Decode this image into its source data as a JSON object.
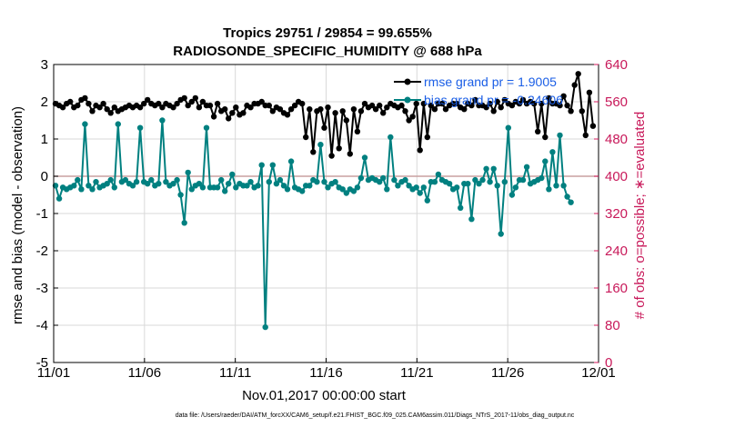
{
  "chart_data": {
    "type": "line",
    "title_line1": "Tropics 29751 / 29854 = 99.655%",
    "title_line2": "RADIOSONDE_SPECIFIC_HUMIDITY @ 688 hPa",
    "ylabel_left": "rmse and bias (model - observation)",
    "ylabel_right": "# of obs: o=possible; ∗=evaluated",
    "xlabel": "Nov.01,2017 00:00:00 start",
    "footnote": "data file: /Users/raeder/DAI/ATM_forcXX/CAM6_setup/f.e21.FHIST_BGC.f09_025.CAM6assim.011/Diags_NTrS_2017-11/obs_diag_output.nc",
    "ylim_left": [
      -5,
      3
    ],
    "yticks_left": [
      "3",
      "2",
      "1",
      "0",
      "-1",
      "-2",
      "-3",
      "-4",
      "-5"
    ],
    "ylim_right": [
      0,
      640
    ],
    "yticks_right": [
      "640",
      "560",
      "480",
      "400",
      "320",
      "240",
      "160",
      "80",
      "0"
    ],
    "xlim": [
      0,
      30
    ],
    "xticks": [
      {
        "value": 0,
        "label": "11/01"
      },
      {
        "value": 5,
        "label": "11/06"
      },
      {
        "value": 10,
        "label": "11/11"
      },
      {
        "value": 15,
        "label": "11/16"
      },
      {
        "value": 20,
        "label": "11/21"
      },
      {
        "value": 25,
        "label": "11/26"
      },
      {
        "value": 30,
        "label": "12/01"
      }
    ],
    "legend": [
      {
        "name": "rmse grand pr = 1.9005",
        "color": "#000000"
      },
      {
        "name": "bias grand pr = -0.24606",
        "color": "#008080"
      }
    ],
    "colors": {
      "rmse": "#000000",
      "bias": "#008080",
      "obs": "#d6195e",
      "zero_line": "#c8a0a0",
      "grid": "#d9d9d9"
    },
    "rmse": [
      1.95,
      1.9,
      1.85,
      1.95,
      2.0,
      1.85,
      1.9,
      2.05,
      2.1,
      1.95,
      1.75,
      1.9,
      1.85,
      1.95,
      1.8,
      1.7,
      1.85,
      1.75,
      1.8,
      1.85,
      1.9,
      1.85,
      1.9,
      1.85,
      1.95,
      2.05,
      1.95,
      1.9,
      1.95,
      1.85,
      1.95,
      1.9,
      1.85,
      1.95,
      2.05,
      2.1,
      1.9,
      2.0,
      2.1,
      1.85,
      2.0,
      1.9,
      1.9,
      1.6,
      1.95,
      1.75,
      1.8,
      1.55,
      1.7,
      1.85,
      1.65,
      1.7,
      1.9,
      1.85,
      1.95,
      1.95,
      2.0,
      1.9,
      1.9,
      1.75,
      1.85,
      1.8,
      1.7,
      1.65,
      1.8,
      1.9,
      2.0,
      1.95,
      1.05,
      1.8,
      0.65,
      1.75,
      1.8,
      1.3,
      1.85,
      0.55,
      1.7,
      0.75,
      1.75,
      1.5,
      0.6,
      1.8,
      1.2,
      1.75,
      1.95,
      1.85,
      1.9,
      1.8,
      1.9,
      1.7,
      1.85,
      1.95,
      1.9,
      1.85,
      1.9,
      1.75,
      1.5,
      1.6,
      1.95,
      0.7,
      1.95,
      1.05,
      1.9,
      1.8,
      1.95,
      1.95,
      1.8,
      1.9,
      1.95,
      1.95,
      1.85,
      1.8,
      1.95,
      1.9,
      2.05,
      1.9,
      1.9,
      1.85,
      1.95,
      1.75,
      2.0,
      1.85,
      2.05,
      1.95,
      1.9,
      2.0,
      1.95,
      2.05,
      1.95,
      2.0,
      1.95,
      1.2,
      1.95,
      1.05,
      2.1,
      1.95,
      1.95,
      1.9,
      2.15,
      1.9,
      1.75,
      2.45,
      2.75,
      1.75,
      1.1,
      2.25,
      1.35
    ],
    "bias": [
      -0.25,
      -0.6,
      -0.3,
      -0.35,
      -0.3,
      -0.25,
      -0.1,
      -0.35,
      1.4,
      -0.25,
      -0.35,
      -0.15,
      -0.3,
      -0.25,
      -0.2,
      -0.1,
      -0.3,
      1.4,
      -0.15,
      -0.1,
      -0.2,
      -0.25,
      -0.15,
      1.3,
      -0.15,
      -0.2,
      -0.1,
      -0.25,
      -0.2,
      1.5,
      -0.15,
      -0.25,
      -0.2,
      -0.1,
      -0.5,
      -1.25,
      0.1,
      -0.35,
      -0.25,
      -0.2,
      -0.3,
      1.3,
      -0.3,
      -0.3,
      -0.3,
      -0.1,
      -0.4,
      -0.2,
      0.05,
      -0.3,
      -0.2,
      -0.25,
      -0.25,
      -0.15,
      -0.3,
      -0.25,
      0.3,
      -4.05,
      -0.15,
      0.3,
      -0.2,
      -0.1,
      -0.25,
      -0.35,
      0.4,
      -0.3,
      -0.35,
      -0.4,
      -0.25,
      -0.25,
      -0.1,
      -0.15,
      0.85,
      -0.15,
      -0.3,
      -0.2,
      -0.15,
      -0.3,
      -0.35,
      -0.45,
      -0.35,
      -0.4,
      -0.3,
      -0.05,
      0.5,
      -0.1,
      -0.05,
      -0.1,
      -0.15,
      -0.05,
      -0.35,
      1.05,
      -0.1,
      -0.25,
      -0.15,
      -0.1,
      -0.25,
      -0.35,
      -0.3,
      -0.45,
      -0.3,
      -0.65,
      -0.15,
      -0.15,
      0.05,
      -0.1,
      -0.15,
      -0.2,
      -0.35,
      -0.3,
      -0.85,
      -0.2,
      -0.2,
      -1.15,
      -0.1,
      -0.2,
      -0.1,
      0.2,
      -0.15,
      0.2,
      -0.25,
      -1.55,
      -0.15,
      1.3,
      -0.5,
      -0.3,
      -0.1,
      -0.1,
      0.25,
      -0.2,
      -0.15,
      -0.1,
      -0.05,
      0.4,
      -0.35,
      0.65,
      -0.25,
      1.1,
      -0.25,
      -0.55,
      -0.7
    ]
  }
}
